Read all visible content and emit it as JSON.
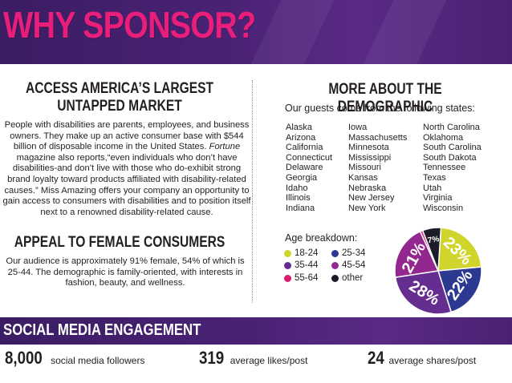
{
  "header": {
    "title": "WHY SPONSOR?"
  },
  "left": {
    "heading1_line1": "ACCESS AMERICA’S LARGEST",
    "heading1_line2": "UNTAPPED MARKET",
    "para1_a": "People with disabilities are parents,  employees, and business owners. They make up an active consumer base with $544 billion of disposable income in the United States. ",
    "para1_italic": "Fortune",
    "para1_b": " magazine also reports,“even individuals who don’t have disabilities-and don’t live with those who do-exhibit strong brand loyalty toward products affiliated with disability-related causes.” Miss Amazing offers your company an opportunity to gain access to consumers with disabilities and to position itself next to a renowned disability-related cause.",
    "heading2": "APPEAL TO FEMALE CONSUMERS",
    "para2": "Our audience is approximately 91% female, 54% of which is 25-44. The demographic is family-oriented, with interests in fashion, beauty, and wellness."
  },
  "right": {
    "heading": "MORE ABOUT THE DEMOGRAPHIC",
    "states_intro": "Our guests come from the following states:",
    "states_col1": [
      "Alaska",
      "Arizona",
      "California",
      "Connecticut",
      "Delaware",
      "Georgia",
      "Idaho",
      "Illinois",
      "Indiana"
    ],
    "states_col2": [
      "Iowa",
      "Massachusetts",
      "Minnesota",
      "Mississippi",
      "Missouri",
      "Kansas",
      "Nebraska",
      "New Jersey",
      "New York"
    ],
    "states_col3": [
      "North Carolina",
      "Oklahoma",
      "South Carolina",
      "South Dakota",
      "Tennessee",
      "Texas",
      "Utah",
      "Virginia",
      "Wisconsin"
    ],
    "age_title": "Age breakdown:"
  },
  "chart_data": {
    "type": "pie",
    "categories": [
      "18-24",
      "25-34",
      "35-44",
      "45-54",
      "55-64",
      "other"
    ],
    "colors": [
      "#cfd52b",
      "#2b3990",
      "#662d91",
      "#92278f",
      "#d91c6f",
      "#1c1b2a"
    ],
    "slices": [
      {
        "category": "18-24",
        "value": 23,
        "label": "23%"
      },
      {
        "category": "25-34",
        "value": 22,
        "label": "22%"
      },
      {
        "category": "35-44",
        "value": 28,
        "label": "28%"
      },
      {
        "category": "45-54",
        "value": 21,
        "label": "21%"
      },
      {
        "category": "55-64",
        "value": 1,
        "label": ""
      },
      {
        "category": "other",
        "value": 7,
        "label": "7%"
      }
    ]
  },
  "footer": {
    "title": "SOCIAL MEDIA ENGAGEMENT",
    "stats": [
      {
        "value": "8,000",
        "label": "social media followers"
      },
      {
        "value": "319",
        "label": "average likes/post"
      },
      {
        "value": "24",
        "label": "average shares/post"
      }
    ]
  }
}
